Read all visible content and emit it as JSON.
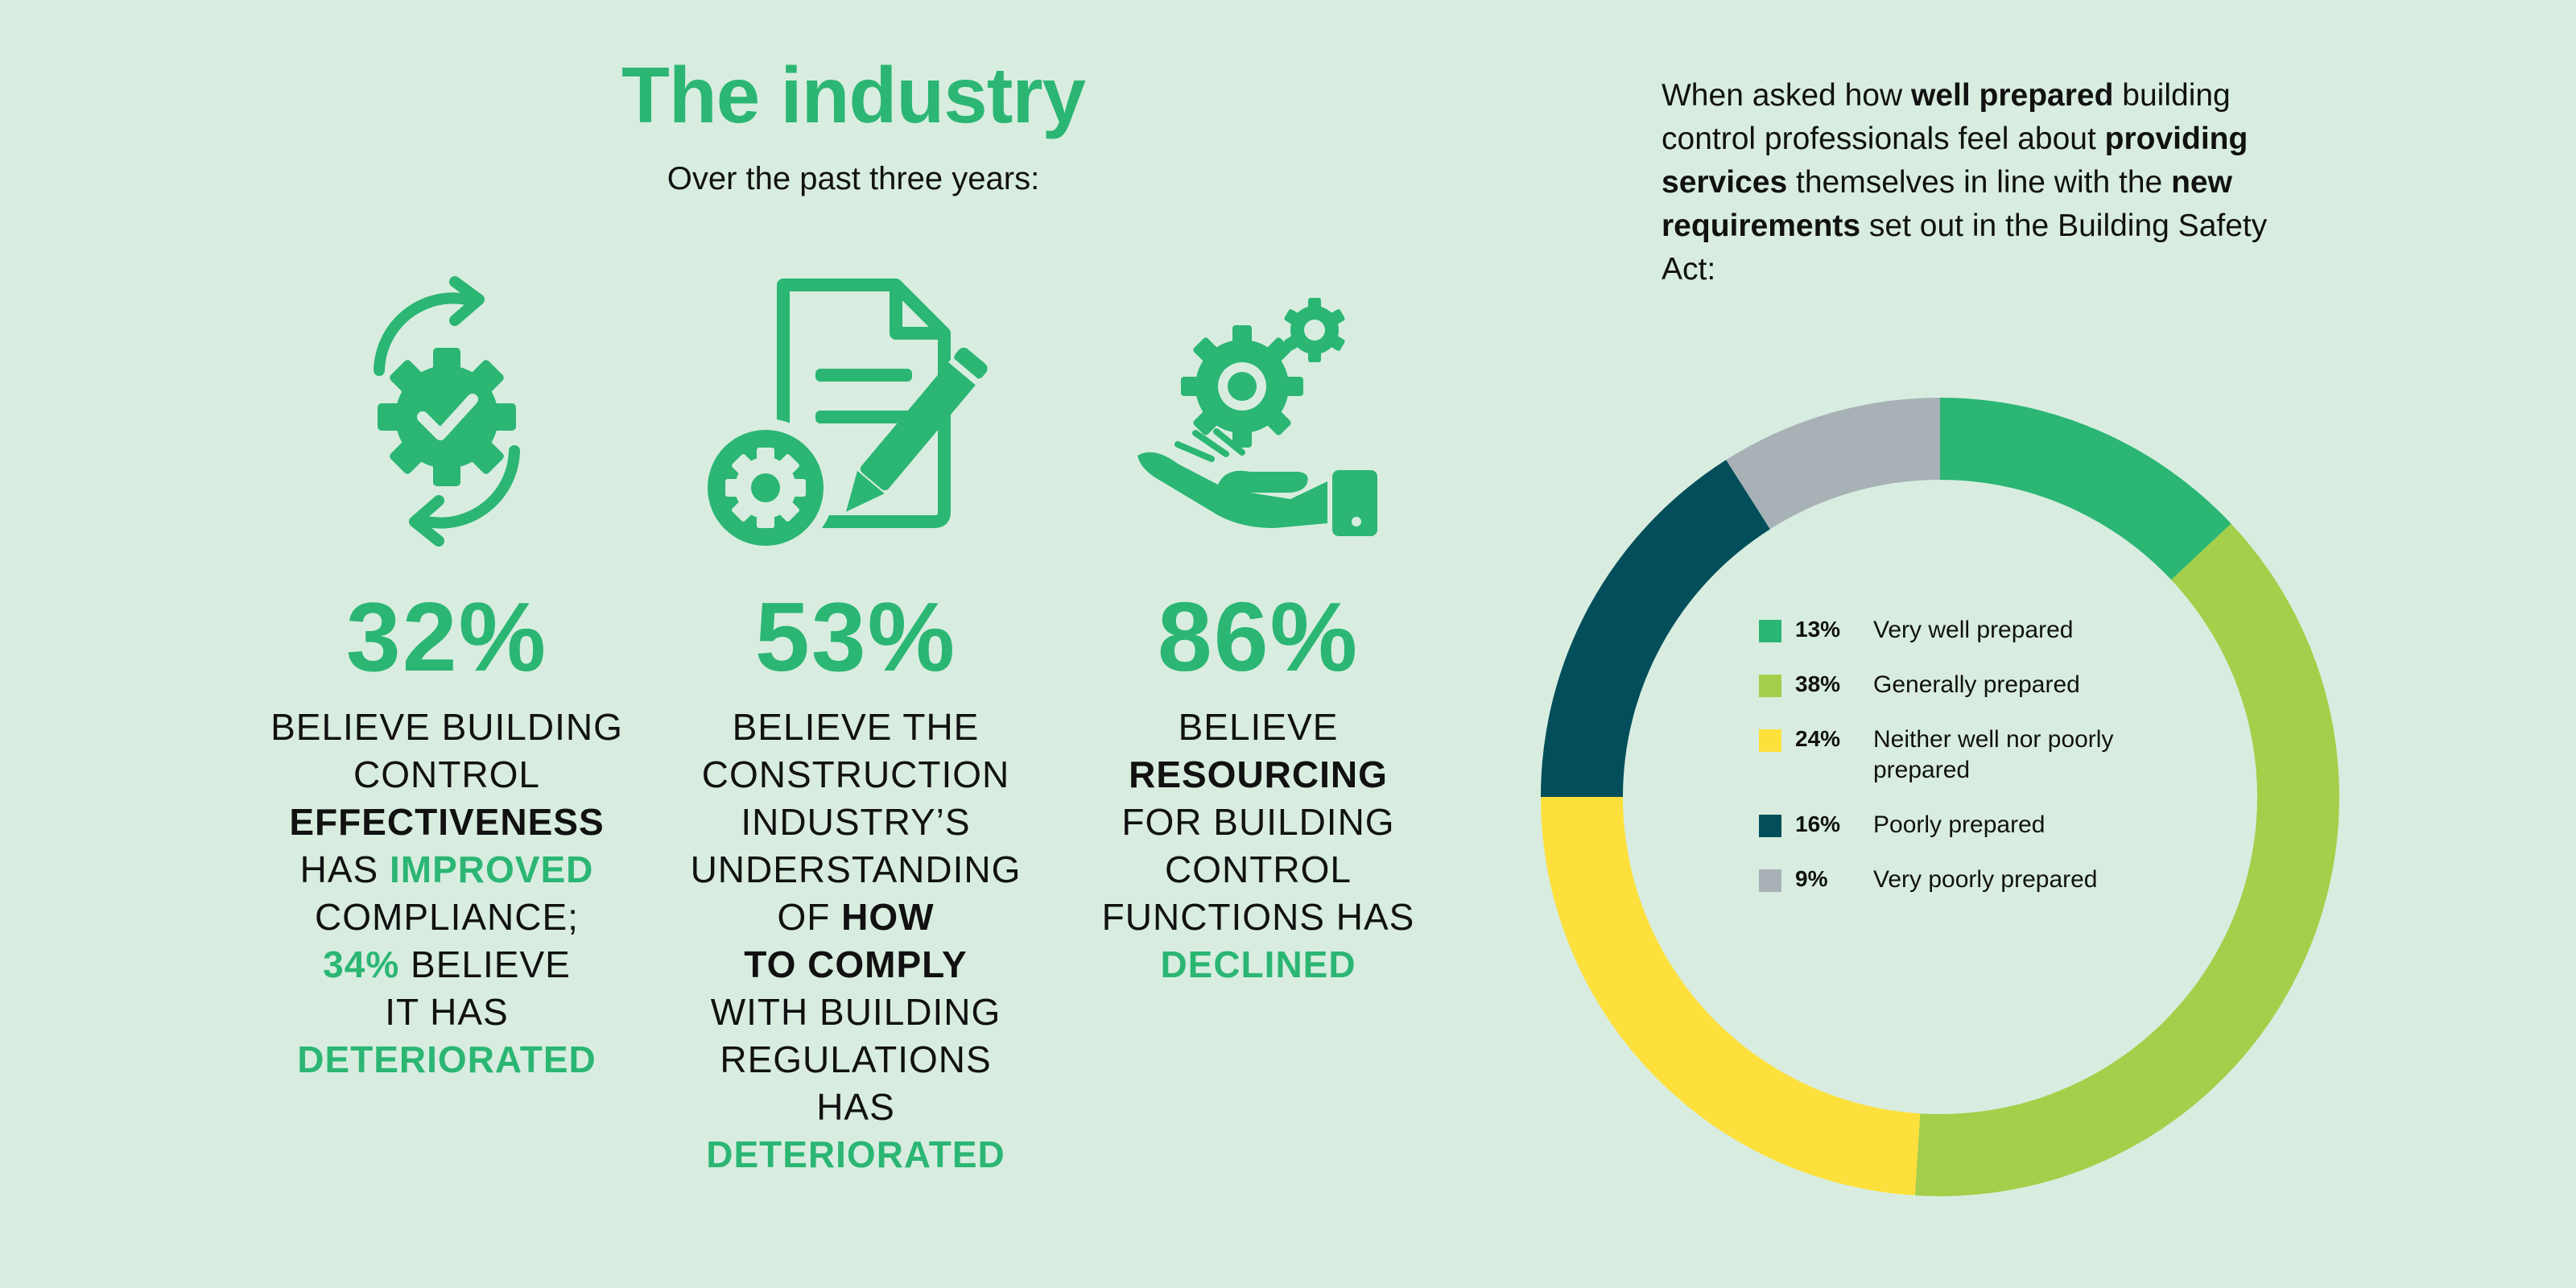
{
  "header": {
    "title": "The industry",
    "subtitle": "Over the past three years:"
  },
  "stats": [
    {
      "value": "32%",
      "icon": "gear-check-cycle-icon",
      "lines": [
        [
          {
            "t": "BELIEVE BUILDING",
            "s": "n"
          }
        ],
        [
          {
            "t": "CONTROL",
            "s": "n"
          }
        ],
        [
          {
            "t": "EFFECTIVENESS",
            "s": "b"
          }
        ],
        [
          {
            "t": "HAS ",
            "s": "n"
          },
          {
            "t": "IMPROVED",
            "s": "g"
          }
        ],
        [
          {
            "t": "COMPLIANCE;",
            "s": "n"
          }
        ],
        [
          {
            "t": "34%",
            "s": "g"
          },
          {
            "t": " BELIEVE",
            "s": "n"
          }
        ],
        [
          {
            "t": "IT HAS",
            "s": "n"
          }
        ],
        [
          {
            "t": "DETERIORATED",
            "s": "g"
          }
        ]
      ]
    },
    {
      "value": "53%",
      "icon": "document-pencil-gear-icon",
      "lines": [
        [
          {
            "t": "BELIEVE THE",
            "s": "n"
          }
        ],
        [
          {
            "t": "CONSTRUCTION",
            "s": "n"
          }
        ],
        [
          {
            "t": "INDUSTRY’S",
            "s": "n"
          }
        ],
        [
          {
            "t": "UNDERSTANDING",
            "s": "n"
          }
        ],
        [
          {
            "t": "OF ",
            "s": "n"
          },
          {
            "t": "HOW",
            "s": "b"
          }
        ],
        [
          {
            "t": "TO COMPLY",
            "s": "b"
          }
        ],
        [
          {
            "t": "WITH BUILDING",
            "s": "n"
          }
        ],
        [
          {
            "t": "REGULATIONS",
            "s": "n"
          }
        ],
        [
          {
            "t": "HAS",
            "s": "n"
          }
        ],
        [
          {
            "t": "DETERIORATED",
            "s": "g"
          }
        ]
      ]
    },
    {
      "value": "86%",
      "icon": "hand-gears-icon",
      "lines": [
        [
          {
            "t": "BELIEVE",
            "s": "n"
          }
        ],
        [
          {
            "t": "RESOURCING",
            "s": "b"
          }
        ],
        [
          {
            "t": "FOR BUILDING",
            "s": "n"
          }
        ],
        [
          {
            "t": "CONTROL",
            "s": "n"
          }
        ],
        [
          {
            "t": "FUNCTIONS HAS",
            "s": "n"
          }
        ],
        [
          {
            "t": "DECLINED",
            "s": "g"
          }
        ]
      ]
    }
  ],
  "question": [
    {
      "t": "When asked how ",
      "s": "n"
    },
    {
      "t": "well prepared",
      "s": "b"
    },
    {
      "t": " building control professionals feel about ",
      "s": "n"
    },
    {
      "t": "providing services",
      "s": "b"
    },
    {
      "t": " themselves in line with the ",
      "s": "n"
    },
    {
      "t": "new requirements",
      "s": "b"
    },
    {
      "t": " set out in the Building Safety Act:",
      "s": "n"
    }
  ],
  "colors": {
    "background": "#d8ede0",
    "accent": "#2bb673"
  },
  "chart_data": {
    "type": "pie",
    "variant": "donut",
    "legend_position": "center",
    "categories": [
      "Very well prepared",
      "Generally prepared",
      "Neither well nor poorly prepared",
      "Poorly prepared",
      "Very poorly prepared"
    ],
    "values": [
      13,
      38,
      24,
      16,
      9
    ],
    "labels": [
      "13%",
      "38%",
      "24%",
      "16%",
      "9%"
    ],
    "colors": [
      "#2bb673",
      "#a4cf4a",
      "#fde03c",
      "#024e5a",
      "#a8b2b6"
    ]
  }
}
